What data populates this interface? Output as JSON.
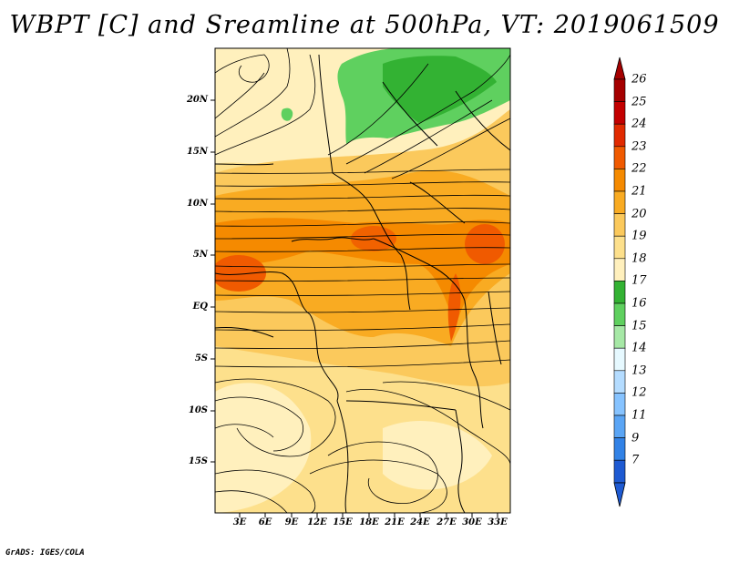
{
  "title": "WBPT [C] and Sreamline at 500hPa, VT: 2019061509",
  "footer": "GrADS: IGES/COLA",
  "lat_labels": [
    "20N",
    "15N",
    "10N",
    "5N",
    "EQ",
    "5S",
    "10S",
    "15S"
  ],
  "lon_labels": [
    "3E",
    "6E",
    "9E",
    "12E",
    "15E",
    "18E",
    "21E",
    "24E",
    "27E",
    "30E",
    "33E"
  ],
  "colorbar": {
    "labels": [
      "26",
      "25",
      "24",
      "23",
      "22",
      "21",
      "20",
      "19",
      "18",
      "17",
      "16",
      "15",
      "14",
      "13",
      "12",
      "11",
      "9",
      "7"
    ],
    "colors": [
      "#a50000",
      "#c30000",
      "#e12a00",
      "#f05a00",
      "#f58a00",
      "#f9ab22",
      "#fbc95c",
      "#fde08c",
      "#fff0bd",
      "#33b233",
      "#5fd05f",
      "#a6e8a6",
      "#e6f9ff",
      "#b4dcff",
      "#86c3ff",
      "#5aa5f5",
      "#3282e6",
      "#1e5ad2"
    ]
  },
  "field_colors": {
    "green_dark": "#33b233",
    "green": "#5fd05f",
    "cream": "#fff0bd",
    "yellow": "#fde08c",
    "light_orange": "#fbc95c",
    "orange": "#f9ab22",
    "dark_orange": "#f58a00",
    "red_orange": "#f05a00"
  }
}
